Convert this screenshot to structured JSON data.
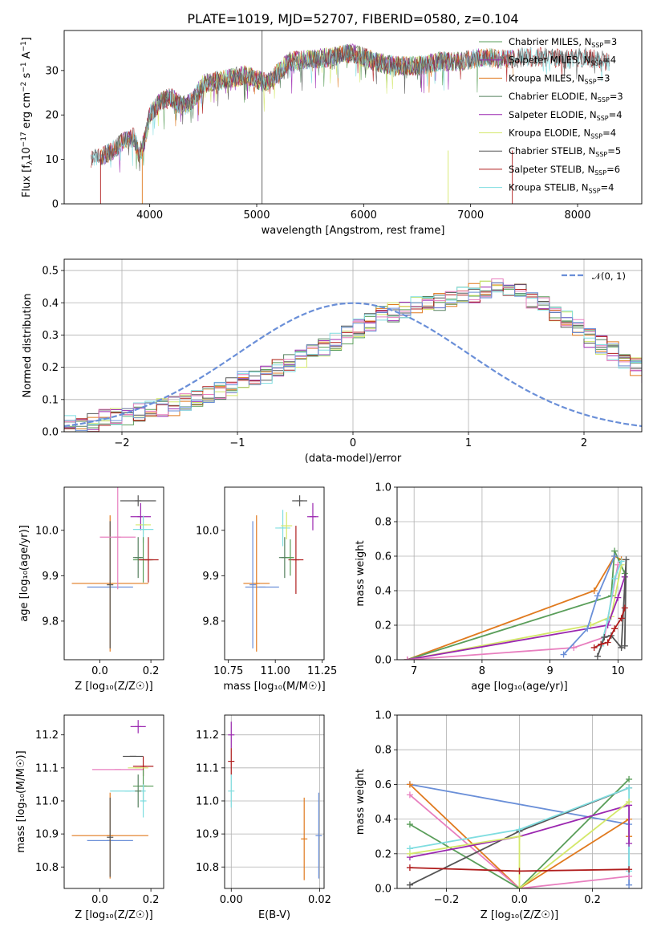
{
  "figure": {
    "title": "PLATE=1019, MJD=52707, FIBERID=0580, z=0.104"
  },
  "series_colors": {
    "Chabrier MILES": "#5a9e5a",
    "Salpeter MILES": "#9b27b0",
    "Kroupa MILES": "#e07a1f",
    "Chabrier ELODIE": "#55805e",
    "Salpeter ELODIE": "#9b27b0",
    "Kroupa ELODIE": "#d4e86a",
    "Chabrier STELIB": "#555555",
    "Salpeter STELIB": "#b01d1d",
    "Kroupa STELIB": "#7fdde0",
    "pink": "#e87fbf",
    "blue": "#6a8fd8",
    "normal": "#6a8fd8"
  },
  "chart_data": [
    {
      "id": "spectrum",
      "type": "line",
      "title": "PLATE=1019, MJD=52707, FIBERID=0580, z=0.104",
      "xlabel": "wavelength [Angstrom, rest frame]",
      "ylabel_parts": [
        "Flux [f",
        "λ",
        "10",
        "−17",
        " erg cm",
        "−2",
        " s",
        "−1",
        " A",
        "−1",
        "]"
      ],
      "xlim": [
        3200,
        8600
      ],
      "ylim": [
        0,
        39
      ],
      "xticks": [
        "4000",
        "5000",
        "6000",
        "7000",
        "8000"
      ],
      "xtick_values": [
        4000,
        5000,
        6000,
        7000,
        8000
      ],
      "yticks": [
        "0",
        "10",
        "20",
        "30"
      ],
      "ytick_values": [
        0,
        10,
        20,
        30
      ],
      "envelope": {
        "x": [
          3450,
          3550,
          3650,
          3750,
          3850,
          3900,
          3950,
          4000,
          4100,
          4200,
          4300,
          4400,
          4500,
          4700,
          4900,
          5100,
          5300,
          5500,
          5700,
          5900,
          6100,
          6300,
          6500,
          6700,
          6900,
          7100,
          7300,
          7500,
          7700,
          7900,
          8100,
          8300
        ],
        "y": [
          10,
          10.5,
          12,
          14,
          15,
          11,
          14,
          20,
          23,
          24,
          22,
          23,
          27,
          28,
          29,
          27,
          32,
          32.5,
          33,
          34,
          32,
          31,
          31,
          32,
          32,
          33,
          32.5,
          33,
          33,
          32.5,
          33,
          32
        ]
      },
      "legend": [
        {
          "name": "Chabrier MILES",
          "nssp": "3"
        },
        {
          "name": "Salpeter MILES",
          "nssp": "4"
        },
        {
          "name": "Kroupa MILES",
          "nssp": "3"
        },
        {
          "name": "Chabrier ELODIE",
          "nssp": "3"
        },
        {
          "name": "Salpeter ELODIE",
          "nssp": "4"
        },
        {
          "name": "Kroupa ELODIE",
          "nssp": "4"
        },
        {
          "name": "Chabrier STELIB",
          "nssp": "5"
        },
        {
          "name": "Salpeter STELIB",
          "nssp": "6"
        },
        {
          "name": "Kroupa STELIB",
          "nssp": "4"
        }
      ]
    },
    {
      "id": "residuals",
      "type": "histogram",
      "xlabel": "(data-model)/error",
      "ylabel": "Normed distribution",
      "xlim": [
        -2.5,
        2.5
      ],
      "ylim": [
        0,
        0.535
      ],
      "xticks": [
        "−2",
        "−1",
        "0",
        "1",
        "2"
      ],
      "xtick_values": [
        -2,
        -1,
        0,
        1,
        2
      ],
      "yticks": [
        "0.0",
        "0.1",
        "0.2",
        "0.3",
        "0.4",
        "0.5"
      ],
      "ytick_values": [
        0,
        0.1,
        0.2,
        0.3,
        0.4,
        0.5
      ],
      "grid": true,
      "legend_label": "𝒩(0, 1)",
      "bin_width": 0.1,
      "bin_start": -2.5,
      "base_counts": [
        0.02,
        0.025,
        0.03,
        0.04,
        0.045,
        0.05,
        0.06,
        0.065,
        0.075,
        0.08,
        0.09,
        0.1,
        0.12,
        0.13,
        0.14,
        0.16,
        0.17,
        0.18,
        0.2,
        0.21,
        0.23,
        0.24,
        0.26,
        0.28,
        0.3,
        0.32,
        0.34,
        0.36,
        0.37,
        0.38,
        0.39,
        0.395,
        0.4,
        0.41,
        0.42,
        0.43,
        0.44,
        0.46,
        0.45,
        0.43,
        0.41,
        0.39,
        0.37,
        0.35,
        0.32,
        0.29,
        0.27,
        0.25,
        0.22,
        0.2,
        0.17,
        0.15,
        0.13,
        0.11,
        0.09,
        0.07,
        0.055,
        0.045,
        0.035,
        0.03,
        0.025,
        0.02
      ],
      "series": [
        "Chabrier MILES",
        "Salpeter MILES",
        "Kroupa MILES",
        "Chabrier ELODIE",
        "Kroupa ELODIE",
        "Chabrier STELIB",
        "Salpeter STELIB",
        "Kroupa STELIB",
        "pink",
        "blue"
      ]
    },
    {
      "id": "age_vs_Z",
      "type": "errorbar",
      "xlabel": "Z [log₁₀(Z/Z☉)]",
      "ylabel": "age  [log₁₀(age/yr)]",
      "xlim": [
        -0.14,
        0.25
      ],
      "ylim": [
        9.715,
        10.095
      ],
      "xticks": [
        "0.0",
        "0.2"
      ],
      "xtick_values": [
        0,
        0.2
      ],
      "yticks": [
        "9.8",
        "9.9",
        "10.0"
      ],
      "ytick_values": [
        9.8,
        9.9,
        10.0
      ],
      "points": [
        {
          "series": "blue",
          "x": 0.04,
          "xerr": 0.09,
          "y": 9.875,
          "yerr": 0.0
        },
        {
          "series": "Kroupa MILES",
          "x": 0.04,
          "xerr": 0.15,
          "y": 9.883,
          "yerr": 0.15
        },
        {
          "series": "Chabrier STELIB",
          "x": 0.04,
          "xerr": 0.0,
          "y": 9.88,
          "yerr": 0.14
        },
        {
          "series": "pink",
          "x": 0.07,
          "xerr": 0.07,
          "y": 9.985,
          "yerr": 0.115
        },
        {
          "series": "Chabrier STELIB",
          "x": 0.15,
          "xerr": 0.07,
          "y": 10.065,
          "yerr": 0.012
        },
        {
          "series": "Salpeter MILES",
          "x": 0.16,
          "xerr": 0.04,
          "y": 10.03,
          "yerr": 0.03
        },
        {
          "series": "Kroupa ELODIE",
          "x": 0.17,
          "xerr": 0.03,
          "y": 10.012,
          "yerr": 0.02
        },
        {
          "series": "Kroupa STELIB",
          "x": 0.17,
          "xerr": 0.04,
          "y": 10.002,
          "yerr": 0.03
        },
        {
          "series": "Chabrier MILES",
          "x": 0.17,
          "xerr": 0.04,
          "y": 9.935,
          "yerr": 0.05
        },
        {
          "series": "Salpeter STELIB",
          "x": 0.19,
          "xerr": 0.04,
          "y": 9.935,
          "yerr": 0.05
        },
        {
          "series": "Chabrier ELODIE",
          "x": 0.15,
          "xerr": 0.02,
          "y": 9.94,
          "yerr": 0.045
        }
      ]
    },
    {
      "id": "age_vs_mass",
      "type": "errorbar",
      "xlabel": "mass [log₁₀(M/M☉)]",
      "ylabel": "",
      "xlim": [
        10.73,
        11.26
      ],
      "ylim": [
        9.715,
        10.095
      ],
      "xticks": [
        "10.75",
        "11.00",
        "11.25"
      ],
      "xtick_values": [
        10.75,
        11.0,
        11.25
      ],
      "yticks": [
        "9.8",
        "9.9",
        "10.0"
      ],
      "ytick_values": [
        9.8,
        9.9,
        10.0
      ],
      "points": [
        {
          "series": "blue",
          "x": 10.93,
          "xerr": 0.09,
          "y": 9.875,
          "yerr": 0.0
        },
        {
          "series": "Kroupa MILES",
          "x": 10.9,
          "xerr": 0.07,
          "y": 9.883,
          "yerr": 0.15
        },
        {
          "series": "blue",
          "x": 10.88,
          "xerr": 0.0,
          "y": 9.88,
          "yerr": 0.14
        },
        {
          "series": "Kroupa STELIB",
          "x": 11.04,
          "xerr": 0.04,
          "y": 10.005,
          "yerr": 0.04
        },
        {
          "series": "Kroupa ELODIE",
          "x": 11.06,
          "xerr": 0.03,
          "y": 10.01,
          "yerr": 0.03
        },
        {
          "series": "Chabrier STELIB",
          "x": 11.13,
          "xerr": 0.04,
          "y": 10.065,
          "yerr": 0.012
        },
        {
          "series": "Salpeter MILES",
          "x": 11.2,
          "xerr": 0.03,
          "y": 10.03,
          "yerr": 0.03
        },
        {
          "series": "Chabrier ELODIE",
          "x": 11.05,
          "xerr": 0.03,
          "y": 9.94,
          "yerr": 0.045
        },
        {
          "series": "Salpeter STELIB",
          "x": 11.11,
          "xerr": 0.04,
          "y": 9.935,
          "yerr": 0.075
        },
        {
          "series": "Chabrier MILES",
          "x": 11.08,
          "xerr": 0.02,
          "y": 9.94,
          "yerr": 0.04
        }
      ]
    },
    {
      "id": "massweight_vs_age",
      "type": "line",
      "xlabel": "age  [log₁₀(age/yr)]",
      "ylabel": "mass weight",
      "xlim": [
        6.75,
        10.35
      ],
      "ylim": [
        0,
        1.0
      ],
      "xticks": [
        "7",
        "8",
        "9",
        "10"
      ],
      "xtick_values": [
        7,
        8,
        9,
        10
      ],
      "yticks": [
        "0.0",
        "0.2",
        "0.4",
        "0.6",
        "0.8",
        "1.0"
      ],
      "ytick_values": [
        0,
        0.2,
        0.4,
        0.6,
        0.8,
        1.0
      ],
      "grid": true,
      "series": [
        {
          "series": "Kroupa MILES",
          "x": [
            6.9,
            9.65,
            9.95,
            10.05
          ],
          "y": [
            0.0,
            0.4,
            0.6,
            0.58
          ]
        },
        {
          "series": "Chabrier MILES",
          "x": [
            6.9,
            9.9,
            9.95,
            10.1
          ],
          "y": [
            0.0,
            0.37,
            0.63,
            0.5
          ]
        },
        {
          "series": "Kroupa ELODIE",
          "x": [
            6.9,
            9.6,
            9.9,
            10.05
          ],
          "y": [
            0.0,
            0.2,
            0.25,
            0.55
          ]
        },
        {
          "series": "Salpeter MILES",
          "x": [
            6.9,
            9.85,
            10.0,
            10.1
          ],
          "y": [
            0.0,
            0.2,
            0.36,
            0.48
          ]
        },
        {
          "series": "pink",
          "x": [
            6.9,
            9.35,
            9.8,
            10.0
          ],
          "y": [
            0.0,
            0.07,
            0.13,
            0.55
          ]
        },
        {
          "series": "blue",
          "x": [
            9.2,
            9.55,
            9.7,
            9.95
          ],
          "y": [
            0.03,
            0.18,
            0.37,
            0.6
          ]
        },
        {
          "series": "Kroupa STELIB",
          "x": [
            9.75,
            9.85,
            9.95,
            10.05
          ],
          "y": [
            0.08,
            0.23,
            0.47,
            0.57
          ]
        },
        {
          "series": "Chabrier STELIB",
          "x": [
            9.7,
            9.8,
            9.9,
            10.05,
            10.12,
            10.1
          ],
          "y": [
            0.02,
            0.13,
            0.14,
            0.07,
            0.58,
            0.08
          ]
        },
        {
          "series": "Salpeter STELIB",
          "x": [
            9.65,
            9.75,
            9.85,
            9.95,
            10.05,
            10.1
          ],
          "y": [
            0.07,
            0.09,
            0.1,
            0.18,
            0.24,
            0.3
          ]
        }
      ]
    },
    {
      "id": "mass_vs_Z",
      "type": "errorbar",
      "xlabel": "Z [log₁₀(Z/Z☉)]",
      "ylabel": "mass [log₁₀(M/M☉)]",
      "xlim": [
        -0.14,
        0.25
      ],
      "ylim": [
        10.735,
        11.26
      ],
      "xticks": [
        "0.0",
        "0.2"
      ],
      "xtick_values": [
        0,
        0.2
      ],
      "yticks": [
        "10.8",
        "10.9",
        "11.0",
        "11.1",
        "11.2"
      ],
      "ytick_values": [
        10.8,
        10.9,
        11.0,
        11.1,
        11.2
      ],
      "points": [
        {
          "series": "blue",
          "x": 0.04,
          "xerr": 0.09,
          "y": 10.88,
          "yerr": 0.0
        },
        {
          "series": "Kroupa MILES",
          "x": 0.04,
          "xerr": 0.15,
          "y": 10.895,
          "yerr": 0.13
        },
        {
          "series": "Chabrier STELIB",
          "x": 0.04,
          "xerr": 0.0,
          "y": 10.89,
          "yerr": 0.12
        },
        {
          "series": "pink",
          "x": 0.07,
          "xerr": 0.1,
          "y": 11.095,
          "yerr": 0.0
        },
        {
          "series": "Kroupa STELIB",
          "x": 0.11,
          "xerr": 0.07,
          "y": 11.03,
          "yerr": 0.0
        },
        {
          "series": "Salpeter MILES",
          "x": 0.15,
          "xerr": 0.03,
          "y": 11.225,
          "yerr": 0.02
        },
        {
          "series": "Chabrier STELIB",
          "x": 0.13,
          "xerr": 0.04,
          "y": 11.135,
          "yerr": 0.0
        },
        {
          "series": "Salpeter STELIB",
          "x": 0.17,
          "xerr": 0.04,
          "y": 11.105,
          "yerr": 0.03
        },
        {
          "series": "Kroupa ELODIE",
          "x": 0.15,
          "xerr": 0.04,
          "y": 11.1,
          "yerr": 0.0
        },
        {
          "series": "Chabrier MILES",
          "x": 0.17,
          "xerr": 0.04,
          "y": 11.045,
          "yerr": 0.05
        },
        {
          "series": "Kroupa STELIB",
          "x": 0.17,
          "xerr": 0.0,
          "y": 11.0,
          "yerr": 0.05
        },
        {
          "series": "Chabrier ELODIE",
          "x": 0.15,
          "xerr": 0.0,
          "y": 11.03,
          "yerr": 0.05
        }
      ]
    },
    {
      "id": "mass_vs_EBV",
      "type": "errorbar",
      "xlabel": "E(B-V)",
      "ylabel": "",
      "xlim": [
        -0.0015,
        0.021
      ],
      "ylim": [
        10.735,
        11.26
      ],
      "xticks": [
        "0.00",
        "0.02"
      ],
      "xtick_values": [
        0,
        0.02
      ],
      "yticks": [
        "10.8",
        "10.9",
        "11.0",
        "11.1",
        "11.2"
      ],
      "ytick_values": [
        10.8,
        10.9,
        11.0,
        11.1,
        11.2
      ],
      "grid": true,
      "points": [
        {
          "series": "Salpeter MILES",
          "x": 0.0,
          "xerr": 0.0,
          "y": 11.2,
          "yerr": 0.04
        },
        {
          "series": "Salpeter STELIB",
          "x": 0.0,
          "xerr": 0.0,
          "y": 11.12,
          "yerr": 0.04
        },
        {
          "series": "Kroupa STELIB",
          "x": 0.0,
          "xerr": 0.0,
          "y": 11.03,
          "yerr": 0.05
        },
        {
          "series": "Kroupa MILES",
          "x": 0.0165,
          "xerr": 0.0,
          "y": 10.885,
          "yerr": 0.125
        },
        {
          "series": "blue",
          "x": 0.0198,
          "xerr": 0.0,
          "y": 10.895,
          "yerr": 0.13
        }
      ]
    },
    {
      "id": "massweight_vs_Z",
      "type": "line",
      "xlabel": "Z [log₁₀(Z/Z☉)]",
      "ylabel": "mass weight",
      "xlim": [
        -0.335,
        0.335
      ],
      "ylim": [
        0,
        1.0
      ],
      "xticks": [
        "−0.2",
        "0.0",
        "0.2"
      ],
      "xtick_values": [
        -0.2,
        0,
        0.2
      ],
      "yticks": [
        "0.0",
        "0.2",
        "0.4",
        "0.6",
        "0.8",
        "1.0"
      ],
      "ytick_values": [
        0,
        0.2,
        0.4,
        0.6,
        0.8,
        1.0
      ],
      "grid": true,
      "series": [
        {
          "series": "blue",
          "x": [
            -0.3,
            0.3,
            0.3
          ],
          "y": [
            0.6,
            0.37,
            0.02
          ]
        },
        {
          "series": "Kroupa MILES",
          "x": [
            -0.3,
            0.0,
            0.3,
            0.3
          ],
          "y": [
            0.6,
            0.0,
            0.4,
            0.3
          ]
        },
        {
          "series": "pink",
          "x": [
            -0.3,
            0.0,
            0.3
          ],
          "y": [
            0.54,
            0.0,
            0.07
          ]
        },
        {
          "series": "Chabrier MILES",
          "x": [
            -0.3,
            0.0,
            0.3
          ],
          "y": [
            0.37,
            0.0,
            0.63
          ]
        },
        {
          "series": "Chabrier STELIB",
          "x": [
            -0.3,
            0.0,
            0.3
          ],
          "y": [
            0.02,
            0.33,
            0.58
          ]
        },
        {
          "series": "Kroupa STELIB",
          "x": [
            -0.3,
            0.0,
            0.3,
            0.3
          ],
          "y": [
            0.23,
            0.34,
            0.58,
            0.1
          ]
        },
        {
          "series": "Salpeter MILES",
          "x": [
            -0.3,
            0.0,
            0.3,
            0.3
          ],
          "y": [
            0.18,
            0.3,
            0.48,
            0.26
          ]
        },
        {
          "series": "Kroupa ELODIE",
          "x": [
            -0.3,
            0.0,
            0.0,
            0.3
          ],
          "y": [
            0.2,
            0.3,
            0.0,
            0.5
          ]
        },
        {
          "series": "Salpeter STELIB",
          "x": [
            -0.3,
            0.0,
            0.3
          ],
          "y": [
            0.12,
            0.1,
            0.11
          ]
        }
      ]
    }
  ]
}
